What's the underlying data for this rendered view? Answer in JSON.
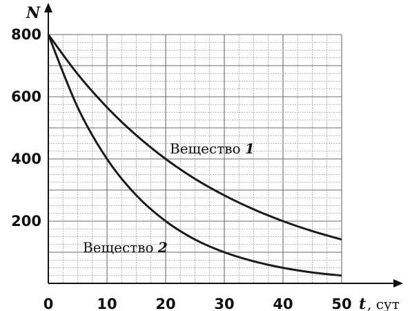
{
  "chart_data": {
    "type": "line",
    "xlabel": "t",
    "xunit": "сут",
    "ylabel": "N",
    "xlim": [
      0,
      50
    ],
    "ylim": [
      0,
      800
    ],
    "xticks": [
      0,
      10,
      20,
      30,
      40,
      50
    ],
    "yticks": [
      200,
      400,
      600,
      800
    ],
    "grid": true,
    "series": [
      {
        "name": "Вещество 1",
        "x": [
          0,
          5,
          10,
          15,
          20,
          25,
          30,
          35,
          40,
          45,
          50
        ],
        "y": [
          800,
          673,
          566,
          476,
          400,
          336,
          283,
          238,
          200,
          168,
          141
        ]
      },
      {
        "name": "Вещество 2",
        "x": [
          0,
          5,
          10,
          15,
          20,
          25,
          30,
          35,
          40,
          45,
          50
        ],
        "y": [
          800,
          566,
          400,
          283,
          200,
          141,
          100,
          71,
          50,
          35,
          25
        ]
      }
    ],
    "series_labels": [
      {
        "prefix": "Вещество",
        "num": "1"
      },
      {
        "prefix": "Вещество",
        "num": "2"
      }
    ]
  }
}
